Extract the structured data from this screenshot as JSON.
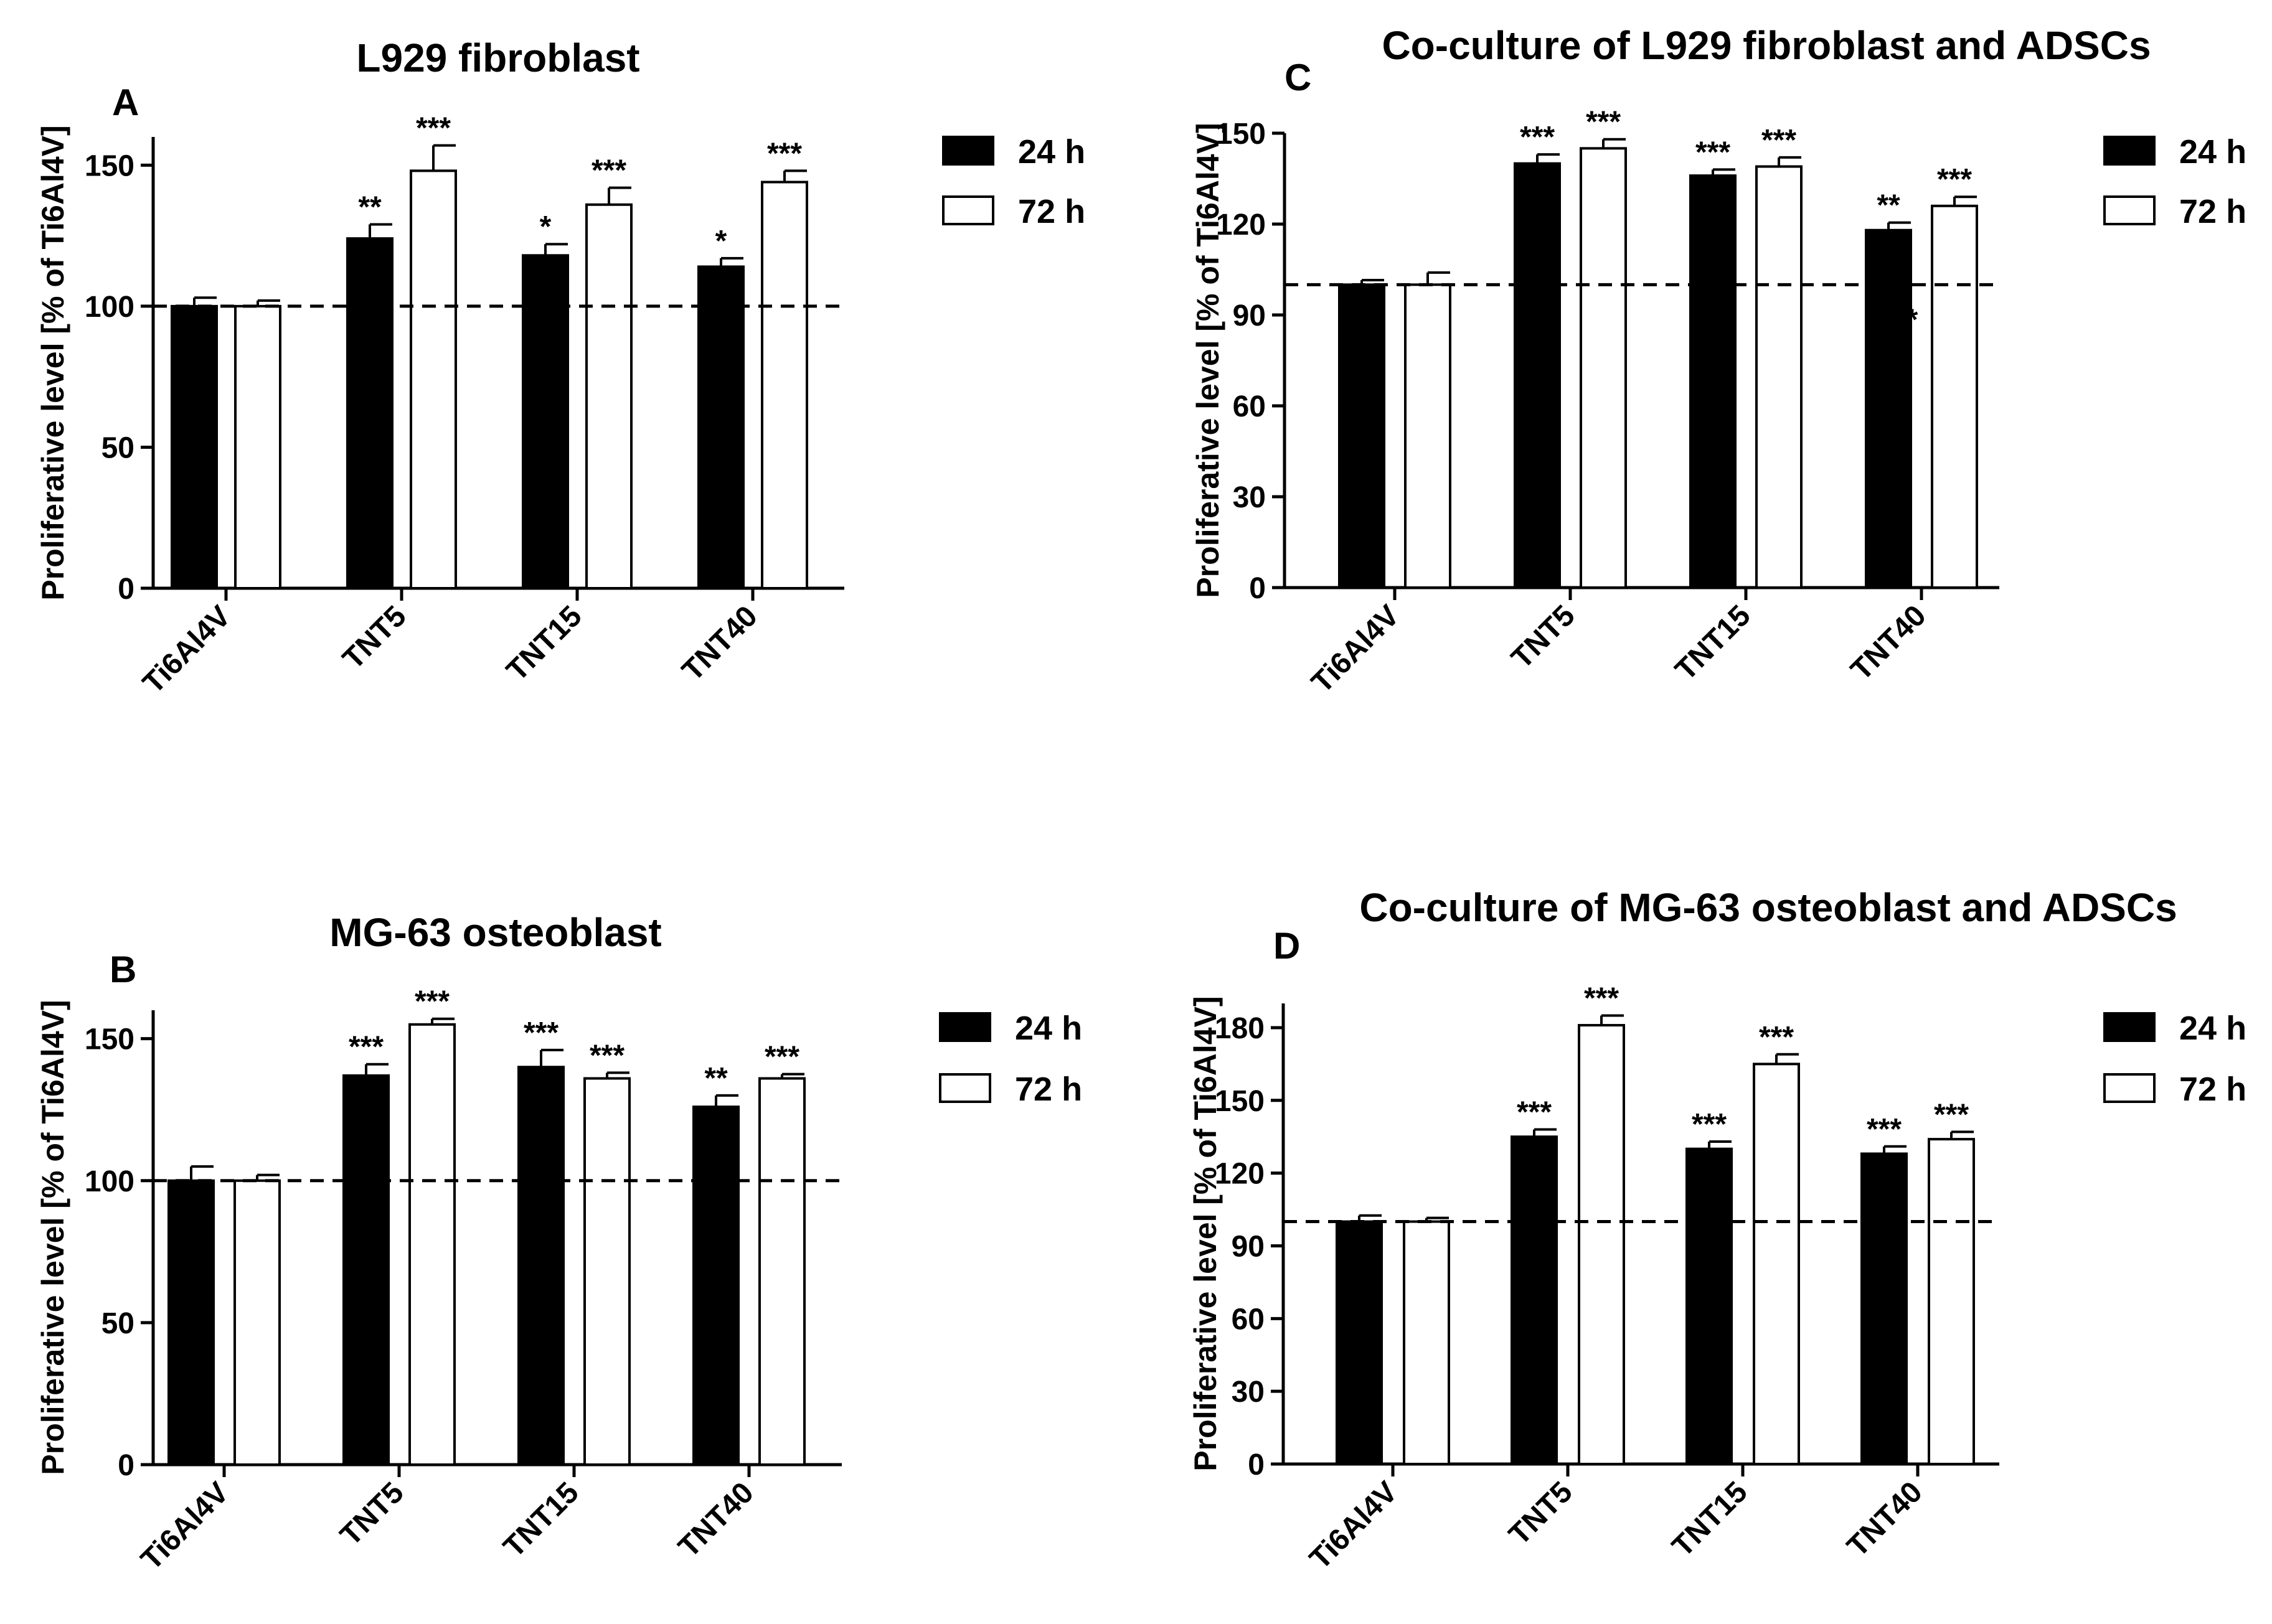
{
  "palette": {
    "bar_24h": "#000000",
    "bar_72h": "#ffffff",
    "axis": "#000000"
  },
  "chart_data": [
    {
      "panel": "A",
      "type": "bar",
      "title": "L929 fibroblast",
      "ylabel": "Proliferative level [% of Ti6Al4V]",
      "xlabel": "",
      "ylim": [
        0,
        160
      ],
      "yticks": [
        0,
        50,
        100,
        150
      ],
      "reference_line": 100,
      "categories": [
        "Ti6Al4V",
        "TNT5",
        "TNT15",
        "TNT40"
      ],
      "series": [
        {
          "name": "24 h",
          "values": [
            100,
            124,
            118,
            114
          ],
          "errors": [
            3,
            5,
            4,
            3
          ],
          "significance": [
            "",
            "**",
            "*",
            "*"
          ]
        },
        {
          "name": "72 h",
          "values": [
            100,
            148,
            136,
            144
          ],
          "errors": [
            2,
            9,
            6,
            4
          ],
          "significance": [
            "",
            "***",
            "***",
            "***"
          ]
        }
      ]
    },
    {
      "panel": "B",
      "type": "bar",
      "title": "MG-63 osteoblast",
      "ylabel": "Proliferative level [% of Ti6Al4V]",
      "xlabel": "",
      "ylim": [
        0,
        160
      ],
      "yticks": [
        0,
        50,
        100,
        150
      ],
      "reference_line": 100,
      "categories": [
        "Ti6Al4V",
        "TNT5",
        "TNT15",
        "TNT40"
      ],
      "series": [
        {
          "name": "24 h",
          "values": [
            100,
            137,
            140,
            126
          ],
          "errors": [
            5,
            4,
            6,
            4
          ],
          "significance": [
            "",
            "***",
            "***",
            "**"
          ]
        },
        {
          "name": "72 h",
          "values": [
            100,
            155,
            136,
            136
          ],
          "errors": [
            2,
            2,
            2,
            1.5
          ],
          "significance": [
            "",
            "***",
            "***",
            "***"
          ]
        }
      ]
    },
    {
      "panel": "C",
      "type": "bar",
      "title": "Co-culture of L929 fibroblast and ADSCs",
      "ylabel": "Proliferative level [% of Ti6Al4V]",
      "xlabel": "",
      "ylim": [
        0,
        150
      ],
      "yticks": [
        0,
        30,
        60,
        90,
        120,
        150
      ],
      "reference_line": 100,
      "stray_mark": "*",
      "categories": [
        "Ti6Al4V",
        "TNT5",
        "TNT15",
        "TNT40"
      ],
      "series": [
        {
          "name": "24 h",
          "values": [
            100,
            140,
            136,
            118
          ],
          "errors": [
            1.5,
            3,
            2,
            2.5
          ],
          "significance": [
            "",
            "***",
            "***",
            "**"
          ]
        },
        {
          "name": "72 h",
          "values": [
            100,
            145,
            139,
            126
          ],
          "errors": [
            4,
            3,
            3,
            3
          ],
          "significance": [
            "",
            "***",
            "***",
            "***"
          ]
        }
      ]
    },
    {
      "panel": "D",
      "type": "bar",
      "title": "Co-culture of MG-63 osteoblast and ADSCs",
      "ylabel": "Proliferative level [% of Ti6Al4V]",
      "xlabel": "",
      "ylim": [
        0,
        190
      ],
      "yticks": [
        0,
        30,
        60,
        90,
        120,
        150,
        180
      ],
      "reference_line": 100,
      "categories": [
        "Ti6Al4V",
        "TNT5",
        "TNT15",
        "TNT40"
      ],
      "series": [
        {
          "name": "24 h",
          "values": [
            100,
            135,
            130,
            128
          ],
          "errors": [
            2.5,
            3,
            3,
            3
          ],
          "significance": [
            "",
            "***",
            "***",
            "***"
          ]
        },
        {
          "name": "72 h",
          "values": [
            100,
            181,
            165,
            134
          ],
          "errors": [
            1.5,
            4,
            4,
            3
          ],
          "significance": [
            "",
            "***",
            "***",
            "***"
          ]
        }
      ]
    }
  ]
}
